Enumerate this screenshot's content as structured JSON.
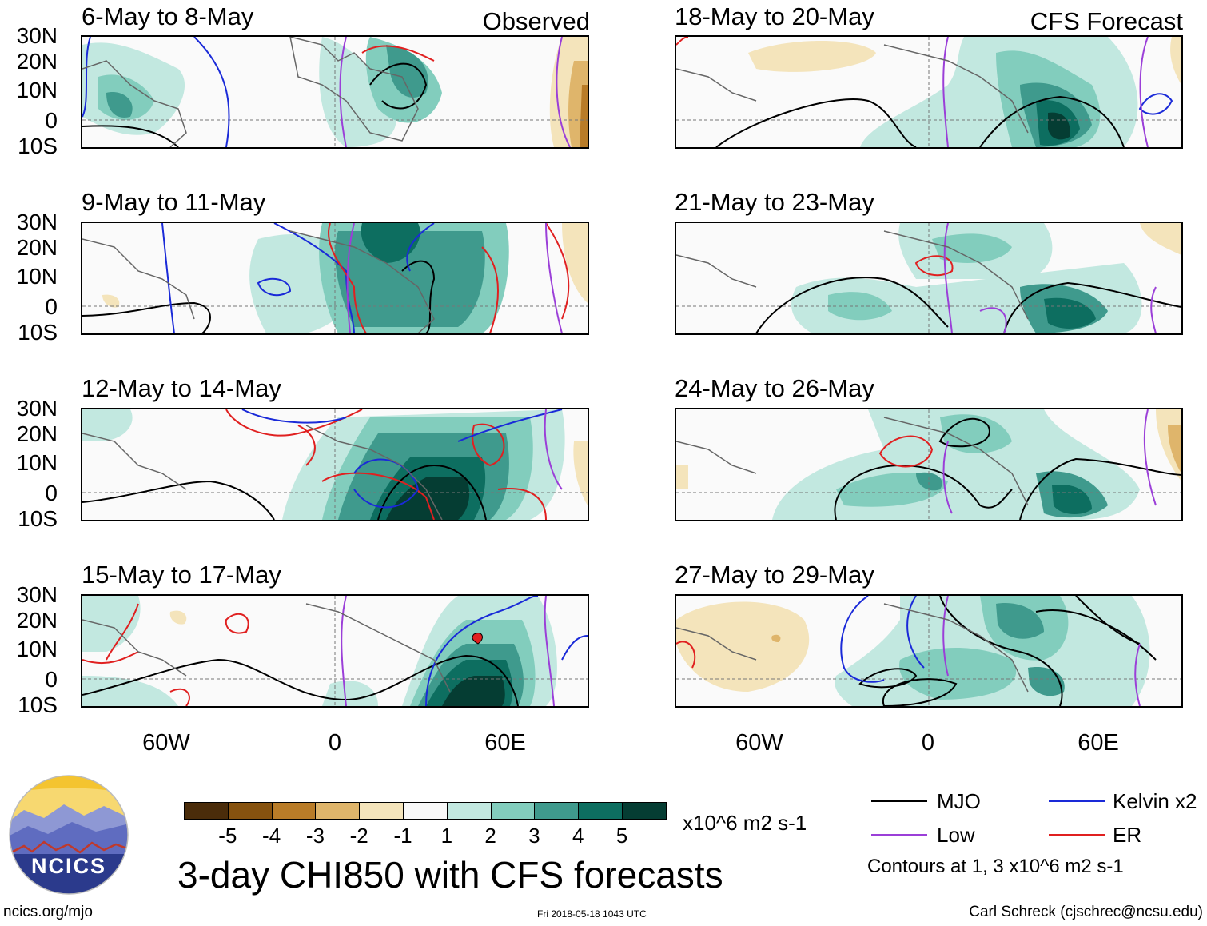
{
  "panels": {
    "observed_tag": "Observed",
    "forecast_tag": "CFS Forecast",
    "left": [
      {
        "title": "6-May to 8-May"
      },
      {
        "title": "9-May to 11-May"
      },
      {
        "title": "12-May to 14-May"
      },
      {
        "title": "15-May to 17-May"
      }
    ],
    "right": [
      {
        "title": "18-May to 20-May"
      },
      {
        "title": "21-May to 23-May"
      },
      {
        "title": "24-May to 26-May"
      },
      {
        "title": "27-May to 29-May"
      }
    ]
  },
  "axes": {
    "lat_labels": [
      "30N",
      "20N",
      "10N",
      "0",
      "10S"
    ],
    "lon_labels": [
      "60W",
      "0",
      "60E"
    ]
  },
  "colorbar": {
    "labels": [
      "-5",
      "-4",
      "-3",
      "-2",
      "-1",
      "1",
      "2",
      "3",
      "4",
      "5"
    ],
    "colors": [
      "#4a2c0a",
      "#86520f",
      "#b97c28",
      "#dfb56b",
      "#f4e4bb",
      "#f8f8f8",
      "#c2e8e0",
      "#82cdbd",
      "#3f9a8d",
      "#0d6e60",
      "#053d33"
    ],
    "units": "x10^6 m2 s-1"
  },
  "legend": {
    "mjo": "MJO",
    "kelvin": "Kelvin x2",
    "low": "Low",
    "er": "ER",
    "contours_note": "Contours at 1, 3 x10^6 m2 s-1",
    "colors": {
      "mjo": "#000000",
      "kelvin": "#1a2ad8",
      "low": "#9b3fd8",
      "er": "#e02020"
    }
  },
  "footer": {
    "main_title": "3-day CHI850 with CFS forecasts",
    "site": "ncics.org/mjo",
    "timestamp": "Fri 2018-05-18 1043 UTC",
    "credit": "Carl Schreck (cjschrec@ncsu.edu)",
    "logo_text": "NCICS"
  }
}
